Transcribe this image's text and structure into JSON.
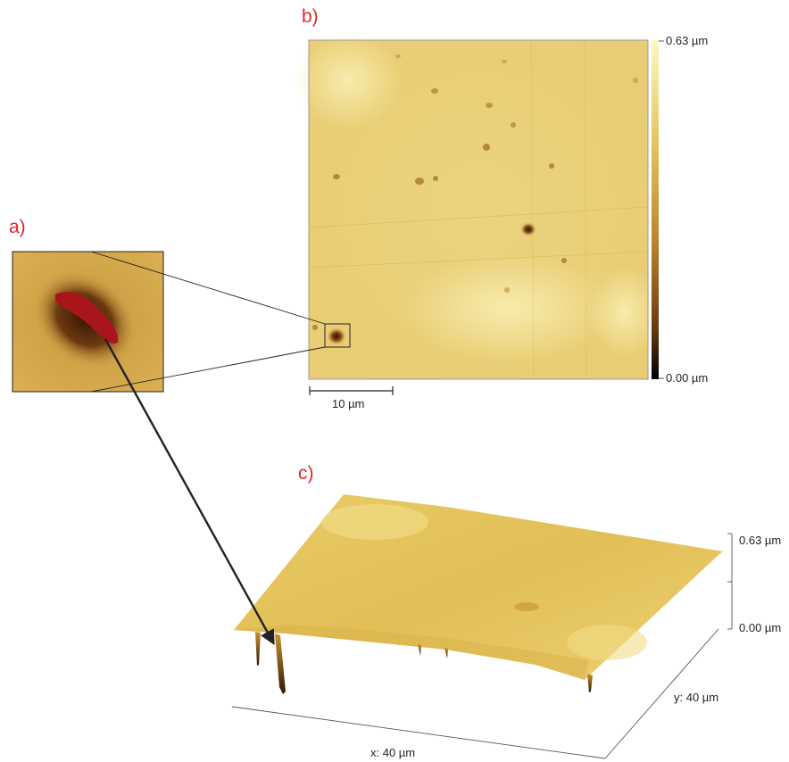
{
  "panels": {
    "a_label": "a)",
    "b_label": "b)",
    "c_label": "c)"
  },
  "panel_b": {
    "colorbar_max": "0.63 µm",
    "colorbar_min": "0.00 µm",
    "scalebar_label": "10 µm",
    "colorbar_colors": [
      "#fbf8c2",
      "#e6c560",
      "#b9822d",
      "#6a3a10",
      "#000000"
    ]
  },
  "panel_c": {
    "z_max": "0.63 µm",
    "z_min": "0.00 µm",
    "x_axis": "x: 40 µm",
    "y_axis": "y: 40 µm"
  },
  "colors": {
    "surface": "#e7c45c",
    "surface_light": "#f3e090",
    "defect": "#5a2a08",
    "defect_core": "#a8151b",
    "label_red": "#e0262b"
  }
}
